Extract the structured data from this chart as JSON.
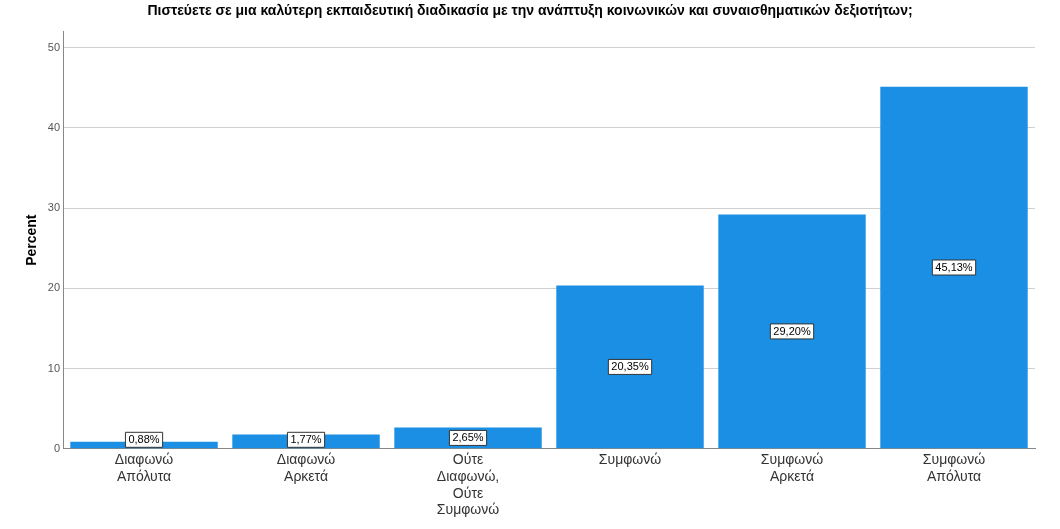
{
  "chart_data": {
    "type": "bar",
    "title": "Πιστεύετε σε μια καλύτερη εκπαιδευτική διαδικασία με την ανάπτυξη κοινωνικών και συναισθηματικών δεξιοτήτων;",
    "ylabel": "Percent",
    "categories": [
      "Διαφωνώ Απόλυτα",
      "Διαφωνώ Αρκετά",
      "Ούτε Διαφωνώ, Ούτε Συμφωνώ",
      "Συμφωνώ",
      "Συμφωνώ Αρκετά",
      "Συμφωνώ Απόλυτα"
    ],
    "values": [
      0.88,
      1.77,
      2.65,
      20.35,
      29.2,
      45.13
    ],
    "value_labels": [
      "0,88%",
      "1,77%",
      "2,65%",
      "20,35%",
      "29,20%",
      "45,13%"
    ],
    "color": "#1a8fe3",
    "ylim": [
      0,
      52
    ],
    "yticks": [
      0,
      10,
      20,
      30,
      40,
      50
    ],
    "grid": "y"
  }
}
